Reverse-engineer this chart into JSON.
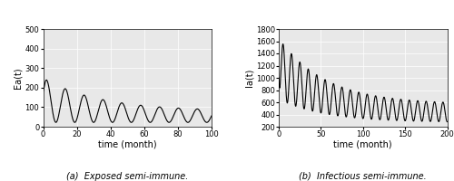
{
  "panel_a": {
    "xlabel": "time (month)",
    "ylabel": "Ea(t)",
    "xlim": [
      0,
      100
    ],
    "ylim": [
      0,
      500
    ],
    "xticks": [
      0,
      20,
      40,
      60,
      80,
      100
    ],
    "yticks": [
      0,
      100,
      200,
      300,
      400,
      500
    ],
    "caption": "(a)  Exposed semi-immune."
  },
  "panel_b": {
    "xlabel": "time (month)",
    "ylabel": "Ia(t)",
    "xlim": [
      0,
      200
    ],
    "ylim": [
      200,
      1800
    ],
    "xticks": [
      0,
      50,
      100,
      150,
      200
    ],
    "yticks": [
      200,
      400,
      600,
      800,
      1000,
      1200,
      1400,
      1600,
      1800
    ],
    "caption": "(b)  Infectious semi-immune."
  },
  "line_color": "#000000",
  "line_width": 0.8,
  "bg_color": "#e8e8e8",
  "fig_bg": "#ffffff",
  "fontsize_label": 7,
  "fontsize_tick": 6,
  "fontsize_caption": 7,
  "ea_init": 180,
  "ea_peak1": 250,
  "ea_peak1_t": 2.0,
  "ea_trough_base": 22,
  "ea_peak_steady": 80,
  "ea_trough_steady": 22,
  "ea_period": 11.2,
  "ea_decay": 0.03,
  "ia_init": 1000,
  "ia_peak1": 1650,
  "ia_peak1_t": 5.0,
  "ia_trough1": 650,
  "ia_peak_steady_top": 570,
  "ia_trough_steady": 270,
  "ia_period": 10.0,
  "ia_decay": 0.018
}
